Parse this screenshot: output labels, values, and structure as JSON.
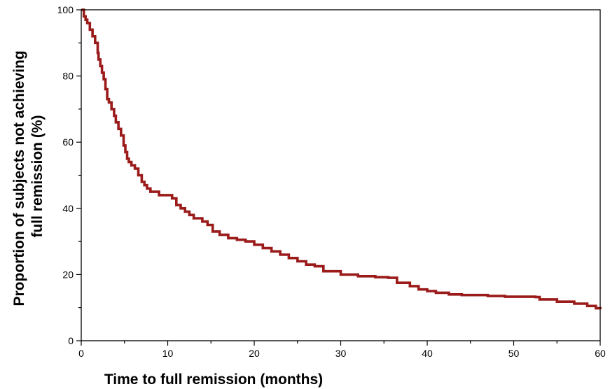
{
  "chart_data": {
    "type": "line",
    "subtype": "kaplan-meier-step",
    "title": "",
    "xlabel": "Time to full remission (months)",
    "ylabel_lines": [
      "Proportion of subjects not achieving",
      "full remission (%)"
    ],
    "xlim": [
      0,
      60
    ],
    "ylim": [
      0,
      100
    ],
    "xticks": [
      0,
      10,
      20,
      30,
      40,
      50,
      60
    ],
    "yticks": [
      0,
      20,
      40,
      60,
      80,
      100
    ],
    "grid": false,
    "legend": "none",
    "series": [
      {
        "color": "#9b1b1b",
        "x": [
          0,
          0.3,
          0.5,
          0.7,
          1.0,
          1.3,
          1.6,
          1.9,
          2.0,
          2.2,
          2.4,
          2.6,
          2.8,
          3.0,
          3.2,
          3.5,
          3.8,
          4.0,
          4.3,
          4.6,
          4.9,
          5.1,
          5.3,
          5.5,
          5.8,
          6.2,
          6.6,
          7.0,
          7.3,
          7.6,
          8.0,
          8.5,
          9.0,
          10.0,
          10.5,
          11.0,
          11.5,
          12.0,
          12.5,
          13.0,
          14.0,
          14.6,
          15.2,
          16.0,
          17.0,
          18.0,
          19.0,
          20.0,
          21.0,
          22.0,
          23.0,
          24.0,
          25.0,
          26.0,
          27.0,
          28.0,
          30.0,
          32.0,
          34.0,
          35.5,
          36.5,
          38.0,
          39.0,
          40.0,
          41.0,
          42.5,
          44.0,
          47.0,
          49.0,
          52.5,
          53.0,
          55.0,
          57.0,
          58.5,
          59.5,
          60.0
        ],
        "y": [
          100,
          98,
          97,
          96,
          94,
          92,
          90,
          87,
          85,
          83,
          81,
          79,
          76,
          73,
          72,
          70,
          68,
          66,
          64,
          62,
          59,
          57,
          55,
          54,
          53,
          52,
          50,
          48,
          47,
          46,
          45,
          45,
          44,
          44,
          43,
          41,
          40,
          39,
          38,
          37,
          36,
          35,
          33,
          32,
          31,
          30.5,
          30,
          29,
          28,
          27,
          26,
          25,
          24,
          23,
          22.5,
          21,
          20,
          19.5,
          19.2,
          19,
          17.5,
          16.5,
          15.5,
          15,
          14.5,
          14,
          13.8,
          13.5,
          13.3,
          13.2,
          12.5,
          11.8,
          11.2,
          10.5,
          9.8,
          9.5
        ]
      }
    ]
  }
}
